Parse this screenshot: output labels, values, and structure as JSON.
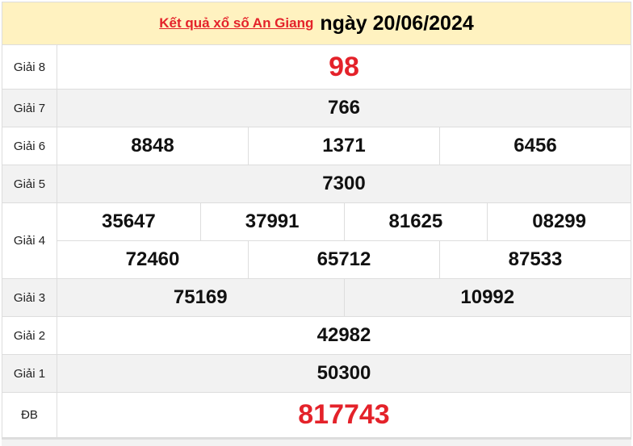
{
  "header": {
    "link": "Kết quả xổ số An Giang",
    "date": "ngày 20/06/2024"
  },
  "rows": [
    {
      "label": "Giải 8",
      "lines": [
        [
          "98"
        ]
      ],
      "red": true
    },
    {
      "label": "Giải 7",
      "lines": [
        [
          "766"
        ]
      ]
    },
    {
      "label": "Giải 6",
      "lines": [
        [
          "8848",
          "1371",
          "6456"
        ]
      ]
    },
    {
      "label": "Giải 5",
      "lines": [
        [
          "7300"
        ]
      ]
    },
    {
      "label": "Giải 4",
      "lines": [
        [
          "35647",
          "37991",
          "81625",
          "08299"
        ],
        [
          "72460",
          "65712",
          "87533"
        ]
      ]
    },
    {
      "label": "Giải 3",
      "lines": [
        [
          "75169",
          "10992"
        ]
      ]
    },
    {
      "label": "Giải 2",
      "lines": [
        [
          "42982"
        ]
      ]
    },
    {
      "label": "Giải 1",
      "lines": [
        [
          "50300"
        ]
      ]
    },
    {
      "label": "ĐB",
      "lines": [
        [
          "817743"
        ]
      ],
      "red": true
    }
  ],
  "colors": {
    "accent": "#e4222a",
    "header_bg": "#fff2c0",
    "alt_row": "#f2f2f2"
  }
}
